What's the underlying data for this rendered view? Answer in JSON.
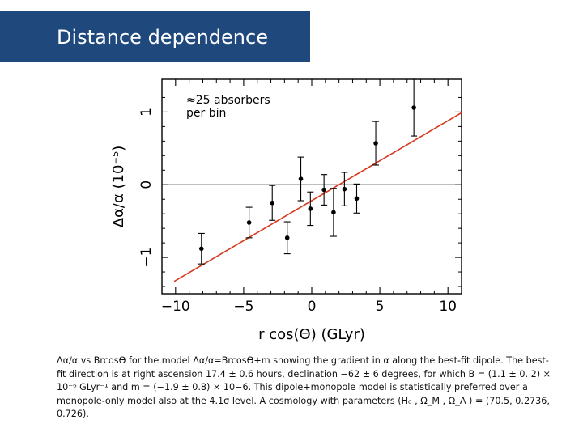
{
  "slide": {
    "title": "Distance dependence",
    "caption": "Δα/α vs Brcosϴ for the model Δα/α=Brcosϴ+m showing the gradient in α along the best-fit dipole. The best- fit direction is at right ascension 17.4 ± 0.6 hours, declination −62 ± 6 degrees, for which B = (1.1 ± 0. 2) × 10⁻⁶ GLyr⁻¹ and m = (−1.9 ± 0.8) × 10−6. This dipole+monopole model is statistically preferred over a monopole-only model also at the 4.1σ level. A cosmology with parameters (H₀ , Ω_M , Ω_Λ ) = (70.5, 0.2736, 0.726)."
  },
  "chart_data": {
    "type": "scatter",
    "xlabel": "r cos(Θ)  (GLyr)",
    "ylabel": "Δα/α  (10⁻⁵)",
    "annotation": [
      "≈25 absorbers",
      "per bin"
    ],
    "xlim": [
      -11,
      11
    ],
    "ylim": [
      -1.5,
      1.45
    ],
    "x_ticks": [
      -10,
      -5,
      0,
      5,
      10
    ],
    "x_tick_labels": [
      "−10",
      "−5",
      "0",
      "5",
      "10"
    ],
    "y_ticks": [
      -1,
      0,
      1
    ],
    "y_tick_labels": [
      "−1",
      "0",
      "1"
    ],
    "series": [
      {
        "color": "#000000",
        "points": [
          {
            "x": -8.1,
            "y": -0.88,
            "err": 0.21
          },
          {
            "x": -4.6,
            "y": -0.52,
            "err": 0.21
          },
          {
            "x": -2.9,
            "y": -0.25,
            "err": 0.24
          },
          {
            "x": -1.8,
            "y": -0.73,
            "err": 0.22
          },
          {
            "x": -0.8,
            "y": 0.08,
            "err": 0.3
          },
          {
            "x": -0.1,
            "y": -0.33,
            "err": 0.23
          },
          {
            "x": 0.9,
            "y": -0.07,
            "err": 0.21
          },
          {
            "x": 1.6,
            "y": -0.38,
            "err": 0.33
          },
          {
            "x": 2.4,
            "y": -0.06,
            "err": 0.23
          },
          {
            "x": 3.3,
            "y": -0.19,
            "err": 0.2
          },
          {
            "x": 4.7,
            "y": 0.57,
            "err": 0.3
          },
          {
            "x": 7.5,
            "y": 1.06,
            "err": 0.39
          }
        ]
      }
    ],
    "fit_line": {
      "color": "#d9381e",
      "x": [
        -10.1,
        11
      ],
      "y": [
        -1.33,
        0.99
      ]
    },
    "zero_line": true
  }
}
